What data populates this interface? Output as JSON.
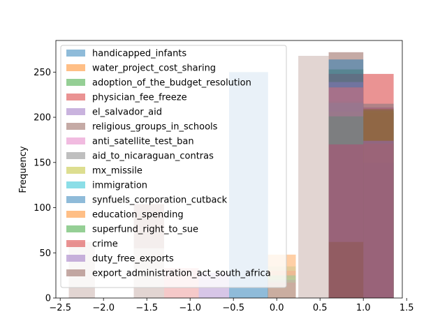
{
  "chart_data": {
    "type": "bar",
    "xlabel": "",
    "ylabel": "Frequency",
    "xlim": [
      -2.55,
      1.45
    ],
    "ylim": [
      0,
      285
    ],
    "x_ticks": [
      -2.5,
      -2.0,
      -1.5,
      -1.0,
      -0.5,
      0.0,
      0.5,
      1.0,
      1.5
    ],
    "x_tick_labels": [
      "−2.5",
      "−2.0",
      "−1.5",
      "−1.0",
      "−0.5",
      "0.0",
      "0.5",
      "1.0",
      "1.5"
    ],
    "y_ticks": [
      0,
      50,
      100,
      150,
      200,
      250
    ],
    "y_tick_labels": [
      "0",
      "50",
      "100",
      "150",
      "200",
      "250"
    ],
    "grid": false,
    "legend_position": "upper-left",
    "bar_alpha": 0.5,
    "series": [
      {
        "name": "handicapped_infants",
        "color": "#1f77b4",
        "bins": [
          [
            -0.55,
            -0.1,
            250
          ],
          [
            0.6,
            1.0,
            170
          ],
          [
            1.0,
            1.35,
            205
          ]
        ]
      },
      {
        "name": "water_project_cost_sharing",
        "color": "#ff7f0e",
        "bins": [
          [
            -0.1,
            0.22,
            48
          ],
          [
            0.6,
            1.0,
            195
          ],
          [
            1.0,
            1.35,
            205
          ]
        ]
      },
      {
        "name": "adoption_of_the_budget_resolution",
        "color": "#2ca02c",
        "bins": [
          [
            -0.1,
            0.22,
            35
          ],
          [
            0.6,
            1.0,
            253
          ],
          [
            1.0,
            1.35,
            208
          ]
        ]
      },
      {
        "name": "physician_fee_freeze",
        "color": "#d62728",
        "bins": [
          [
            -1.3,
            -0.9,
            33
          ],
          [
            -0.1,
            0.22,
            30
          ],
          [
            0.6,
            1.0,
            248
          ]
        ]
      },
      {
        "name": "el_salvador_aid",
        "color": "#9467bd",
        "bins": [
          [
            -0.9,
            -0.55,
            28
          ],
          [
            0.6,
            1.0,
            212
          ],
          [
            1.0,
            1.35,
            211
          ]
        ]
      },
      {
        "name": "religious_groups_in_schools",
        "color": "#8c564b",
        "bins": [
          [
            -2.4,
            -2.1,
            62
          ],
          [
            0.25,
            0.6,
            268
          ],
          [
            0.6,
            1.0,
            272
          ]
        ]
      },
      {
        "name": "anti_satellite_test_ban",
        "color": "#e377c2",
        "bins": [
          [
            -0.1,
            0.22,
            20
          ],
          [
            0.6,
            1.0,
            239
          ],
          [
            1.0,
            1.35,
            210
          ]
        ]
      },
      {
        "name": "aid_to_nicaraguan_contras",
        "color": "#7f7f7f",
        "bins": [
          [
            -0.1,
            0.22,
            25
          ],
          [
            0.6,
            1.0,
            218
          ],
          [
            1.0,
            1.35,
            174
          ]
        ]
      },
      {
        "name": "mx_missile",
        "color": "#bcbd22",
        "bins": [
          [
            -0.1,
            0.22,
            22
          ],
          [
            0.6,
            1.0,
            206
          ],
          [
            1.0,
            1.35,
            207
          ]
        ]
      },
      {
        "name": "immigration",
        "color": "#17becf",
        "bins": [
          [
            -0.1,
            0.22,
            15
          ],
          [
            0.6,
            1.0,
            216
          ],
          [
            1.0,
            1.35,
            215
          ]
        ]
      },
      {
        "name": "synfuels_corporation_cutback",
        "color": "#1f77b4",
        "bins": [
          [
            -0.1,
            0.22,
            21
          ],
          [
            0.6,
            1.0,
            264
          ],
          [
            1.0,
            1.35,
            150
          ]
        ]
      },
      {
        "name": "education_spending",
        "color": "#ff7f0e",
        "bins": [
          [
            -0.1,
            0.22,
            48
          ],
          [
            0.6,
            1.0,
            233
          ],
          [
            1.0,
            1.35,
            171
          ]
        ]
      },
      {
        "name": "superfund_right_to_sue",
        "color": "#2ca02c",
        "bins": [
          [
            -0.1,
            0.22,
            25
          ],
          [
            0.6,
            1.0,
            201
          ],
          [
            1.0,
            1.35,
            209
          ]
        ]
      },
      {
        "name": "crime",
        "color": "#d62728",
        "bins": [
          [
            -0.1,
            0.22,
            17
          ],
          [
            0.6,
            1.0,
            170
          ],
          [
            1.0,
            1.35,
            248
          ]
        ]
      },
      {
        "name": "duty_free_exports",
        "color": "#9467bd",
        "bins": [
          [
            -0.9,
            -0.55,
            28
          ],
          [
            0.6,
            1.0,
            233
          ],
          [
            1.0,
            1.35,
            174
          ]
        ]
      },
      {
        "name": "export_administration_act_south_africa",
        "color": "#8c564b",
        "bins": [
          [
            -1.65,
            -1.3,
            104
          ],
          [
            -0.1,
            0.22,
            20
          ],
          [
            0.6,
            1.0,
            62
          ]
        ]
      },
      {
        "name": "",
        "color": "#ffffff",
        "bins": [
          [
            -2.4,
            -2.1,
            65
          ],
          [
            -1.65,
            -1.3,
            55
          ],
          [
            -1.3,
            -0.9,
            124
          ],
          [
            -0.9,
            -0.55,
            264
          ],
          [
            -0.1,
            0.22,
            104
          ],
          [
            0.25,
            0.6,
            270
          ]
        ]
      }
    ]
  }
}
